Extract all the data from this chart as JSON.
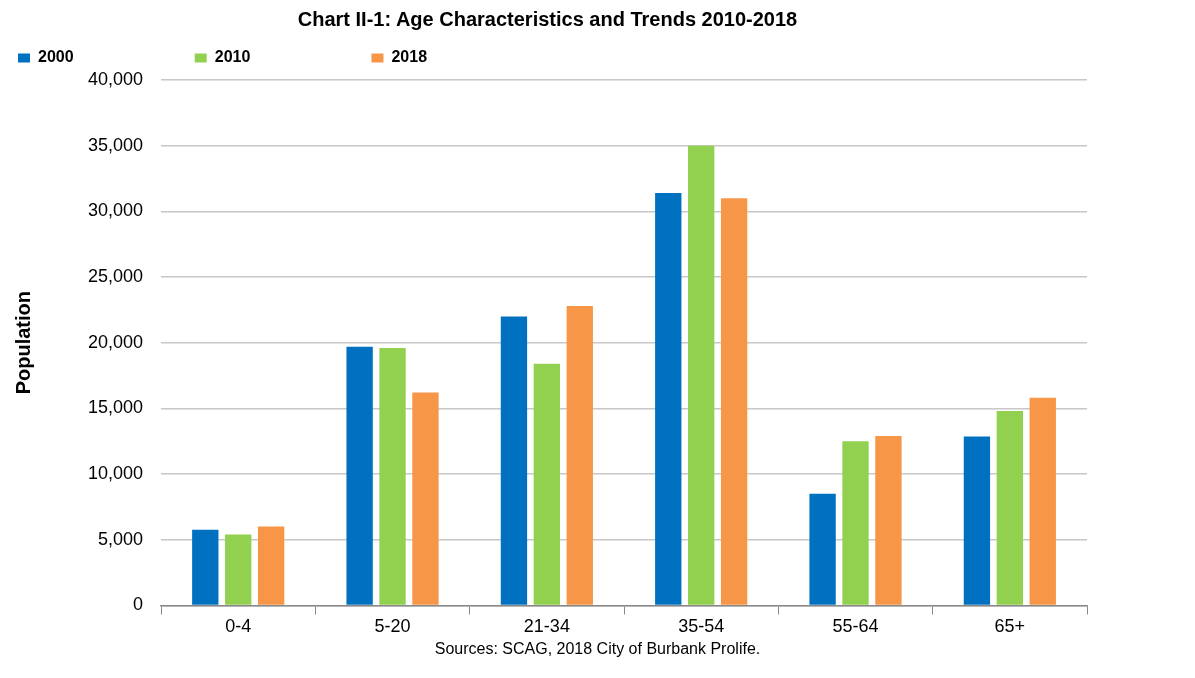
{
  "chart_data": {
    "type": "bar",
    "title": "Chart II-1: Age Characteristics and Trends 2010-2018",
    "ylabel": "Population",
    "categories": [
      "0-4",
      "5-20",
      "21-34",
      "35-54",
      "55-64",
      "65+"
    ],
    "series": [
      {
        "name": "2000",
        "color": "#0070c0",
        "values": [
          5750,
          19700,
          22000,
          31400,
          8500,
          12850
        ]
      },
      {
        "name": "2010",
        "color": "#92d050",
        "values": [
          5400,
          19600,
          18400,
          35000,
          12500,
          14800
        ]
      },
      {
        "name": "2018",
        "color": "#f79646",
        "values": [
          6000,
          16200,
          22800,
          31000,
          12900,
          15800
        ]
      }
    ],
    "ylim": [
      0,
      40000
    ],
    "yticks": [
      {
        "value": 0,
        "label": "0"
      },
      {
        "value": 5000,
        "label": "5,000"
      },
      {
        "value": 10000,
        "label": "10,000"
      },
      {
        "value": 15000,
        "label": "15,000"
      },
      {
        "value": 20000,
        "label": "20,000"
      },
      {
        "value": 25000,
        "label": "25,000"
      },
      {
        "value": 30000,
        "label": "30,000"
      },
      {
        "value": 35000,
        "label": "35,000"
      },
      {
        "value": 40000,
        "label": "40,000"
      }
    ],
    "grid": "y",
    "legend": "top left",
    "annotations": [
      "Sources: SCAG, 2018 City of Burbank Prolife."
    ]
  }
}
